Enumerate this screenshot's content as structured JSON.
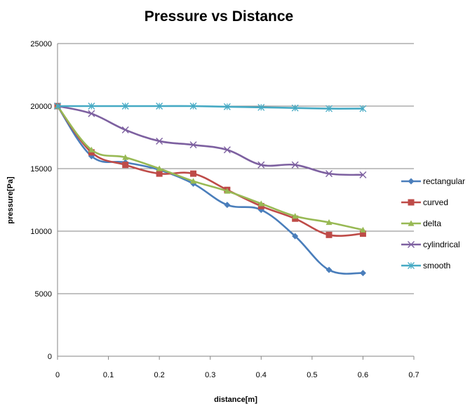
{
  "chart_data": {
    "type": "line",
    "title": "Pressure vs Distance",
    "xlabel": "distance[m]",
    "ylabel": "pressure[Pa]",
    "xlim": [
      0,
      0.7
    ],
    "ylim": [
      0,
      25000
    ],
    "x_ticks": [
      "0",
      "0.1",
      "0.2",
      "0.3",
      "0.4",
      "0.5",
      "0.6",
      "0.7"
    ],
    "y_ticks": [
      "0",
      "5000",
      "10000",
      "15000",
      "20000",
      "25000"
    ],
    "grid": "horizontal",
    "legend_position": "right",
    "x": [
      0,
      0.0667,
      0.1333,
      0.2,
      0.2667,
      0.3333,
      0.4,
      0.4667,
      0.5333,
      0.6
    ],
    "series": [
      {
        "name": "rectangular",
        "color": "#4a7ebb",
        "marker": "diamond",
        "values": [
          20000,
          16000,
          15500,
          14900,
          13800,
          12100,
          11700,
          9600,
          6900,
          6650
        ]
      },
      {
        "name": "curved",
        "color": "#be4b48",
        "marker": "square",
        "values": [
          20000,
          16300,
          15300,
          14600,
          14600,
          13300,
          12000,
          11000,
          9700,
          9800
        ]
      },
      {
        "name": "delta",
        "color": "#98b954",
        "marker": "triangle",
        "values": [
          20000,
          16500,
          15900,
          15000,
          14000,
          13200,
          12200,
          11200,
          10700,
          10100
        ]
      },
      {
        "name": "cylindrical",
        "color": "#7d60a0",
        "marker": "x",
        "values": [
          20000,
          19400,
          18100,
          17200,
          16900,
          16500,
          15300,
          15300,
          14600,
          14500
        ]
      },
      {
        "name": "smooth",
        "color": "#46aac4",
        "marker": "star",
        "values": [
          20000,
          20000,
          20000,
          20000,
          20000,
          19950,
          19900,
          19850,
          19800,
          19800
        ]
      }
    ]
  }
}
